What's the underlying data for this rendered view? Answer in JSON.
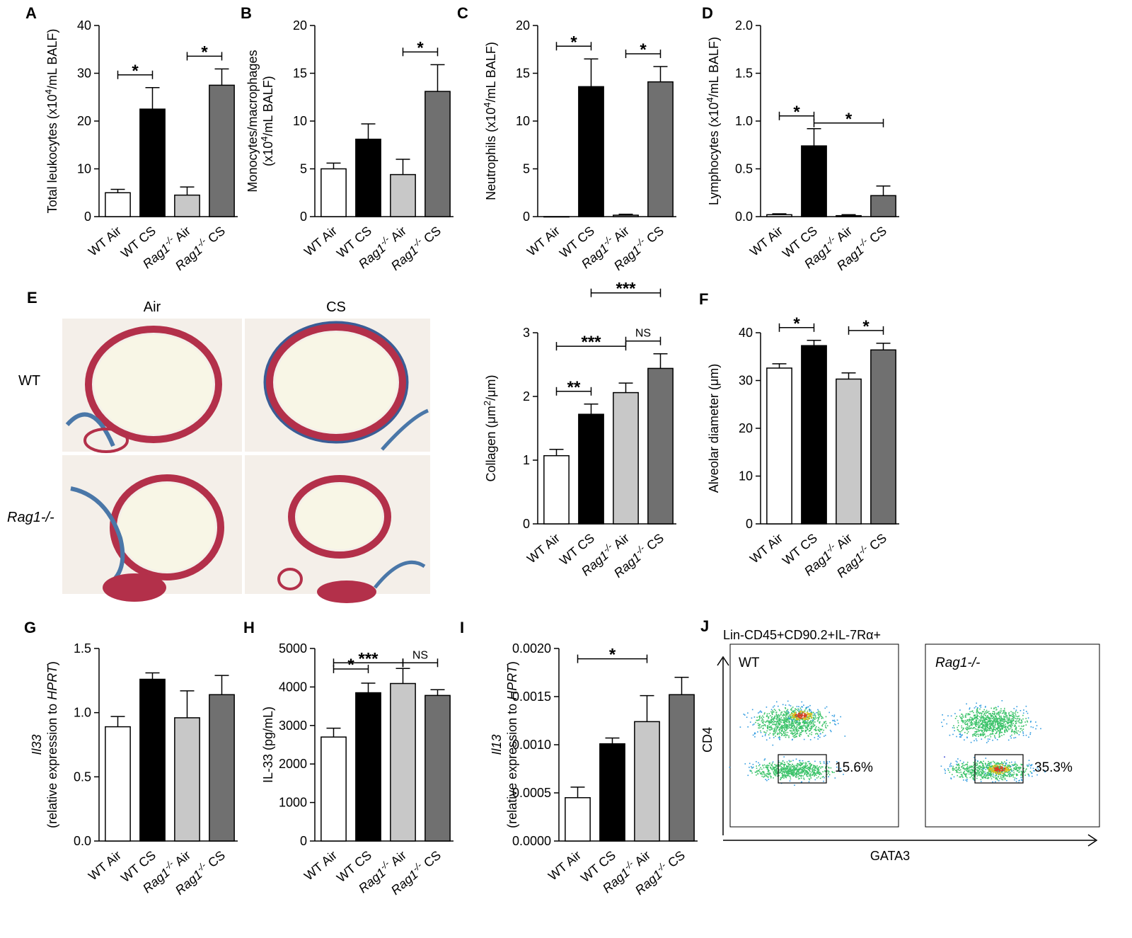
{
  "micrographs": {
    "col_labels": [
      "Air",
      "CS"
    ],
    "row_labels": [
      "WT",
      "Rag1-/-"
    ]
  },
  "flow": {
    "title": "Lin-CD45+CD90.2+IL-7Rα+",
    "xlabel": "GATA3",
    "ylabel": "CD4",
    "panels": [
      {
        "label": "WT",
        "gate_percent": "15.6%"
      },
      {
        "label": "Rag1-/-",
        "gate_percent": "35.3%"
      }
    ]
  },
  "chart_data": [
    {
      "panel": "A",
      "type": "bar",
      "categories": [
        "WT Air",
        "WT CS",
        "Rag1-/- Air",
        "Rag1-/- CS"
      ],
      "values": [
        5.0,
        22.5,
        4.5,
        27.5
      ],
      "errors": [
        0.7,
        4.5,
        1.7,
        3.4
      ],
      "ylabel": "Total leukocytes (x10^4/mL BALF)",
      "ylim": [
        0,
        40
      ],
      "yticks": [
        0,
        10,
        20,
        30,
        40
      ],
      "sig": [
        {
          "from": 0,
          "to": 1,
          "label": "*"
        },
        {
          "from": 2,
          "to": 3,
          "label": "*"
        }
      ]
    },
    {
      "panel": "B",
      "type": "bar",
      "categories": [
        "WT Air",
        "WT CS",
        "Rag1-/- Air",
        "Rag1-/- CS"
      ],
      "values": [
        5.0,
        8.1,
        4.4,
        13.1
      ],
      "errors": [
        0.6,
        1.6,
        1.6,
        2.8
      ],
      "ylabel": "Monocytes/macrophages (x10^4/mL BALF)",
      "ylim": [
        0,
        20
      ],
      "yticks": [
        0,
        5,
        10,
        15,
        20
      ],
      "sig": [
        {
          "from": 2,
          "to": 3,
          "label": "*"
        }
      ]
    },
    {
      "panel": "C",
      "type": "bar",
      "categories": [
        "WT Air",
        "WT CS",
        "Rag1-/- Air",
        "Rag1-/- CS"
      ],
      "values": [
        0.0,
        13.6,
        0.15,
        14.1
      ],
      "errors": [
        0,
        2.9,
        0.1,
        1.6
      ],
      "ylabel": "Neutrophils (x10^4/mL BALF)",
      "ylim": [
        0,
        20
      ],
      "yticks": [
        0,
        5,
        10,
        15,
        20
      ],
      "sig": [
        {
          "from": 0,
          "to": 1,
          "label": "*"
        },
        {
          "from": 2,
          "to": 3,
          "label": "*"
        }
      ]
    },
    {
      "panel": "D",
      "type": "bar",
      "categories": [
        "WT Air",
        "WT CS",
        "Rag1-/- Air",
        "Rag1-/- CS"
      ],
      "values": [
        0.02,
        0.74,
        0.01,
        0.22
      ],
      "errors": [
        0.01,
        0.18,
        0.01,
        0.1
      ],
      "ylabel": "Lymphocytes (x10^4/mL BALF)",
      "ylim": [
        0,
        2.0
      ],
      "yticks": [
        0.0,
        0.5,
        1.0,
        1.5,
        2.0
      ],
      "sig": [
        {
          "from": 0,
          "to": 1,
          "label": "*"
        },
        {
          "from": 1,
          "to": 3,
          "label": "*"
        }
      ]
    },
    {
      "panel": "",
      "type": "bar",
      "categories": [
        "WT Air",
        "WT CS",
        "Rag1-/- Air",
        "Rag1-/- CS"
      ],
      "values": [
        1.07,
        1.72,
        2.06,
        2.44
      ],
      "errors": [
        0.1,
        0.16,
        0.15,
        0.23
      ],
      "ylabel": "Collagen (μm2/μm)",
      "ylim": [
        0,
        3
      ],
      "yticks": [
        0,
        1,
        2,
        3
      ],
      "sig": [
        {
          "from": 0,
          "to": 1,
          "label": "**"
        },
        {
          "from": 0,
          "to": 2,
          "label": "***"
        },
        {
          "from": 2,
          "to": 3,
          "label": "NS"
        },
        {
          "from": 1,
          "to": 3,
          "label": "***"
        }
      ]
    },
    {
      "panel": "F",
      "type": "bar",
      "categories": [
        "WT Air",
        "WT CS",
        "Rag1-/- Air",
        "Rag1-/- CS"
      ],
      "values": [
        32.6,
        37.3,
        30.3,
        36.4
      ],
      "errors": [
        0.9,
        1.1,
        1.3,
        1.4
      ],
      "ylabel": "Alveolar diameter (μm)",
      "ylim": [
        0,
        40
      ],
      "yticks": [
        0,
        10,
        20,
        30,
        40
      ],
      "sig": [
        {
          "from": 0,
          "to": 1,
          "label": "*"
        },
        {
          "from": 2,
          "to": 3,
          "label": "*"
        }
      ]
    },
    {
      "panel": "G",
      "type": "bar",
      "categories": [
        "WT Air",
        "WT CS",
        "Rag1-/- Air",
        "Rag1-/- CS"
      ],
      "values": [
        0.89,
        1.26,
        0.96,
        1.14
      ],
      "errors": [
        0.08,
        0.05,
        0.21,
        0.15
      ],
      "ylabel": "Il33 (relative expression to HPRT)",
      "ylim": [
        0,
        1.5
      ],
      "yticks": [
        0.0,
        0.5,
        1.0,
        1.5
      ],
      "sig": []
    },
    {
      "panel": "H",
      "type": "bar",
      "categories": [
        "WT Air",
        "WT CS",
        "Rag1-/- Air",
        "Rag1-/- CS"
      ],
      "values": [
        2700,
        3850,
        4090,
        3780
      ],
      "errors": [
        230,
        250,
        390,
        150
      ],
      "ylabel": "IL-33 (pg/mL)",
      "ylim": [
        0,
        5000
      ],
      "yticks": [
        0,
        1000,
        2000,
        3000,
        4000,
        5000
      ],
      "sig": [
        {
          "from": 0,
          "to": 1,
          "label": "*"
        },
        {
          "from": 0,
          "to": 2,
          "label": "***"
        },
        {
          "from": 2,
          "to": 3,
          "label": "NS"
        }
      ]
    },
    {
      "panel": "I",
      "type": "bar",
      "categories": [
        "WT Air",
        "WT CS",
        "Rag1-/- Air",
        "Rag1-/- CS"
      ],
      "values": [
        0.00045,
        0.00101,
        0.00124,
        0.00152
      ],
      "errors": [
        0.00011,
        6e-05,
        0.00027,
        0.00018
      ],
      "ylabel": "Il13 (relative expression to HPRT)",
      "ylim": [
        0,
        0.002
      ],
      "yticks": [
        "0.0000",
        "0.0005",
        "0.0010",
        "0.0015",
        "0.0020"
      ],
      "sig": [
        {
          "from": 0,
          "to": 2,
          "label": "*"
        }
      ]
    }
  ],
  "panel_letters": [
    "E",
    "J"
  ],
  "colors": {
    "bar_fills": [
      "#ffffff",
      "#000000",
      "#c8c8c8",
      "#707070"
    ],
    "axis": "#000000"
  }
}
